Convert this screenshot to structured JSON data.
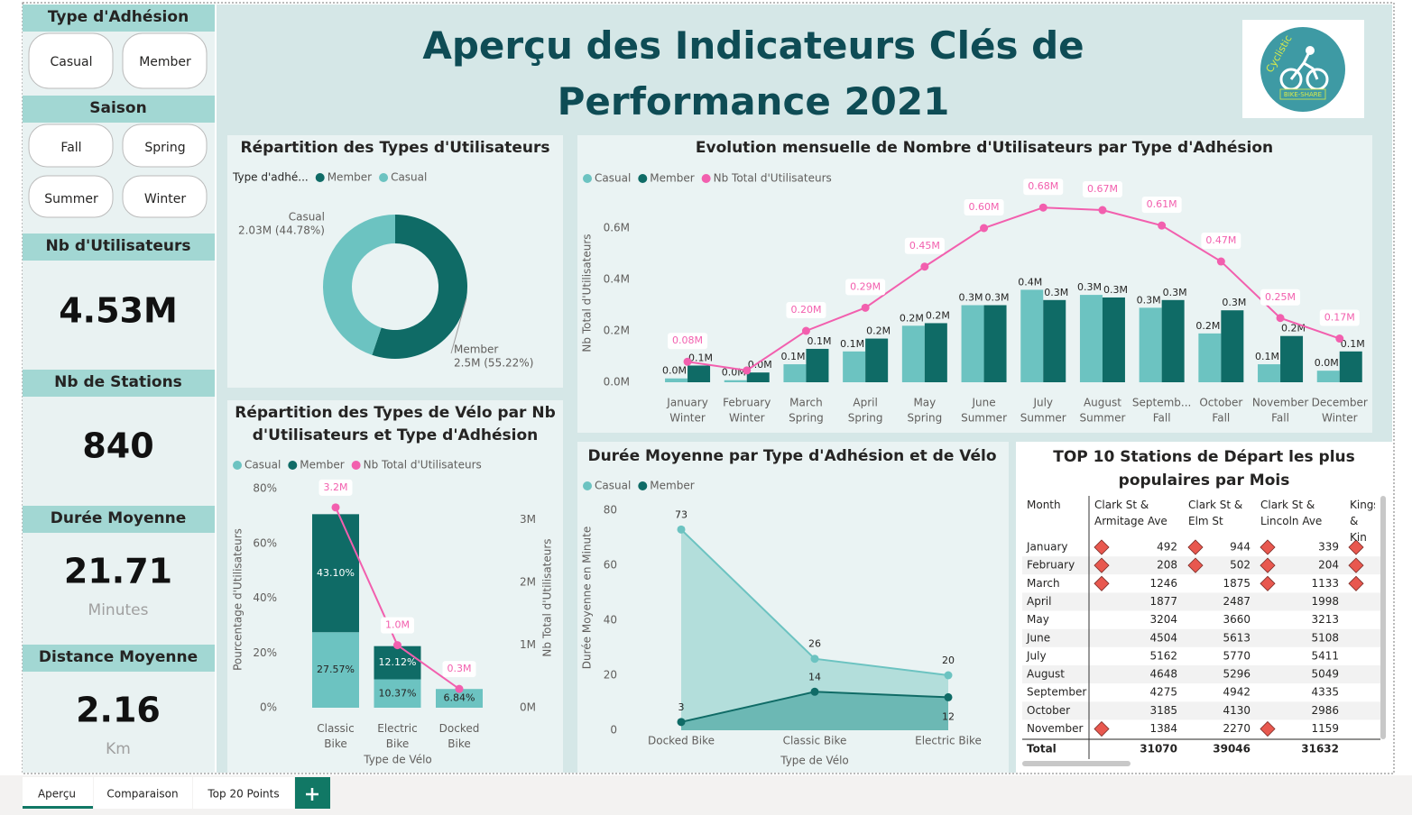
{
  "header": {
    "title": "Aperçu des Indicateurs Clés de Performance 2021",
    "logo": {
      "text": "Cyclistic",
      "subtext": "BIKE-SHARE"
    }
  },
  "slicers": [
    {
      "title": "Type d'Adhésion",
      "options": [
        "Casual",
        "Member"
      ]
    },
    {
      "title": "Saison",
      "options": [
        "Fall",
        "Spring",
        "Summer",
        "Winter"
      ]
    }
  ],
  "cards": [
    {
      "title": "Nb d'Utilisateurs",
      "value": "4.53M"
    },
    {
      "title": "Nb de Stations",
      "value": 840
    },
    {
      "title": "Durée Moyenne",
      "value": 21.71,
      "unit": "Minutes"
    },
    {
      "title": "Distance Moyenne",
      "value": 2.16,
      "unit": "Km"
    }
  ],
  "chart_data": [
    {
      "type": "donut",
      "title": "Répartition des Types d'Utilisateurs",
      "legend_title": "Type d'adhé...",
      "categories": [
        "Member",
        "Casual"
      ],
      "values": [
        2.5,
        2.03
      ],
      "value_labels": [
        "2.5M (55.22%)",
        "2.03M (44.78%)"
      ],
      "colors": [
        "#0f6b66",
        "#6cc3c1"
      ]
    },
    {
      "type": "bar-line",
      "title": "Evolution mensuelle de Nombre d'Utilisateurs par Type d'Adhésion",
      "categories": [
        "January",
        "February",
        "March",
        "April",
        "May",
        "June",
        "July",
        "August",
        "Septemb...",
        "October",
        "November",
        "December"
      ],
      "seasons": [
        "Winter",
        "Winter",
        "Spring",
        "Spring",
        "Spring",
        "Summer",
        "Summer",
        "Summer",
        "Fall",
        "Fall",
        "Fall",
        "Winter"
      ],
      "y_label": "Nb Total d'Utilisateurs",
      "ylim": [
        0,
        0.7
      ],
      "yticks": [
        {
          "value": 0,
          "label": "0.0M"
        },
        {
          "value": 0.2,
          "label": "0.2M"
        },
        {
          "value": 0.4,
          "label": "0.4M"
        },
        {
          "value": 0.6,
          "label": "0.6M"
        }
      ],
      "series": [
        {
          "name": "Casual",
          "color": "#6cc3c1",
          "kind": "bar",
          "values": [
            0.015,
            0.008,
            0.07,
            0.12,
            0.22,
            0.3,
            0.36,
            0.34,
            0.29,
            0.19,
            0.07,
            0.045
          ],
          "value_labels": [
            "0.0M",
            "0.0M",
            "0.1M",
            "0.1M",
            "0.2M",
            "0.3M",
            "0.4M",
            "0.3M",
            "0.3M",
            "0.2M",
            "0.1M",
            "0.0M"
          ]
        },
        {
          "name": "Member",
          "color": "#0f6b66",
          "kind": "bar",
          "values": [
            0.065,
            0.038,
            0.13,
            0.17,
            0.23,
            0.3,
            0.32,
            0.33,
            0.32,
            0.28,
            0.18,
            0.12
          ],
          "value_labels": [
            "0.1M",
            "0.0M",
            "0.1M",
            "0.2M",
            "0.2M",
            "0.3M",
            "0.3M",
            "0.3M",
            "0.3M",
            "0.3M",
            "0.2M",
            "0.1M"
          ]
        },
        {
          "name": "Nb Total d'Utilisateurs",
          "color": "#f25fae",
          "kind": "line",
          "values": [
            0.08,
            0.046,
            0.2,
            0.29,
            0.45,
            0.6,
            0.68,
            0.67,
            0.61,
            0.47,
            0.25,
            0.17
          ],
          "value_labels": [
            "0.08M",
            null,
            "0.20M",
            "0.29M",
            "0.45M",
            "0.60M",
            "0.68M",
            "0.67M",
            "0.61M",
            "0.47M",
            "0.25M",
            "0.17M"
          ]
        }
      ]
    },
    {
      "type": "stacked-bar-line",
      "title": "Répartition des Types de Vélo par Nb d'Utilisateurs et Type d'Adhésion",
      "categories": [
        "Classic Bike",
        "Electric Bike",
        "Docked Bike"
      ],
      "x_label": "Type de Vélo",
      "y_label": "Pourcentage d'Utilisateurs",
      "y2_label": "Nb Total d'Utilisateurs",
      "ylim": [
        0,
        80
      ],
      "yticks": [
        {
          "value": 0,
          "label": "0%"
        },
        {
          "value": 20,
          "label": "20%"
        },
        {
          "value": 40,
          "label": "40%"
        },
        {
          "value": 60,
          "label": "60%"
        },
        {
          "value": 80,
          "label": "80%"
        }
      ],
      "y2lim": [
        0,
        3.5
      ],
      "y2ticks": [
        {
          "value": 0,
          "label": "0M"
        },
        {
          "value": 1,
          "label": "1M"
        },
        {
          "value": 2,
          "label": "2M"
        },
        {
          "value": 3,
          "label": "3M"
        }
      ],
      "series": [
        {
          "name": "Casual",
          "color": "#6cc3c1",
          "kind": "bar",
          "values": [
            27.57,
            10.37,
            6.84
          ],
          "value_labels": [
            "27.57%",
            "10.37%",
            "6.84%"
          ]
        },
        {
          "name": "Member",
          "color": "#0f6b66",
          "kind": "bar",
          "values": [
            43.1,
            12.12,
            null
          ],
          "value_labels": [
            "43.10%",
            "12.12%",
            null
          ]
        },
        {
          "name": "Nb Total d'Utilisateurs",
          "color": "#f25fae",
          "kind": "line",
          "axis": "y2",
          "values": [
            3.2,
            1.0,
            0.3
          ],
          "value_labels": [
            "3.2M",
            "1.0M",
            "0.3M"
          ]
        }
      ]
    },
    {
      "type": "area",
      "title": "Durée Moyenne par Type d'Adhésion et de Vélo",
      "categories": [
        "Docked Bike",
        "Classic Bike",
        "Electric Bike"
      ],
      "x_label": "Type de Vélo",
      "y_label": "Durée Moyenne en Minute",
      "ylim": [
        0,
        84
      ],
      "yticks": [
        0,
        20,
        40,
        60,
        80
      ],
      "series": [
        {
          "name": "Casual",
          "color": "#6cc3c1",
          "values": [
            73,
            26,
            20
          ]
        },
        {
          "name": "Member",
          "color": "#0f6b66",
          "values": [
            3,
            14,
            12
          ]
        }
      ]
    }
  ],
  "table": {
    "title": "TOP 10 Stations de Départ les plus populaires par Mois",
    "columns": [
      "Month",
      "Clark St & Armitage Ave",
      "Clark St & Elm St",
      "Clark St & Lincoln Ave",
      "Kings & Kin"
    ],
    "rows": [
      [
        "January",
        492,
        944,
        339
      ],
      [
        "February",
        208,
        502,
        204
      ],
      [
        "March",
        1246,
        1875,
        1133
      ],
      [
        "April",
        1877,
        2487,
        1998
      ],
      [
        "May",
        3204,
        3660,
        3213
      ],
      [
        "June",
        4504,
        5613,
        5108
      ],
      [
        "July",
        5162,
        5770,
        5411
      ],
      [
        "August",
        4648,
        5296,
        5049
      ],
      [
        "September",
        4275,
        4942,
        4335
      ],
      [
        "October",
        3185,
        4130,
        2986
      ],
      [
        "November",
        1384,
        2270,
        1159
      ]
    ],
    "icons": [
      [
        1,
        2,
        3,
        4
      ],
      [
        1,
        2,
        3,
        4
      ],
      [
        1,
        3,
        4
      ],
      [],
      [],
      [],
      [],
      [],
      [],
      [],
      [
        1,
        3
      ]
    ],
    "total": [
      "Total",
      31070,
      39046,
      31632
    ]
  },
  "tabs": [
    "Aperçu",
    "Comparaison",
    "Top 20 Points"
  ]
}
